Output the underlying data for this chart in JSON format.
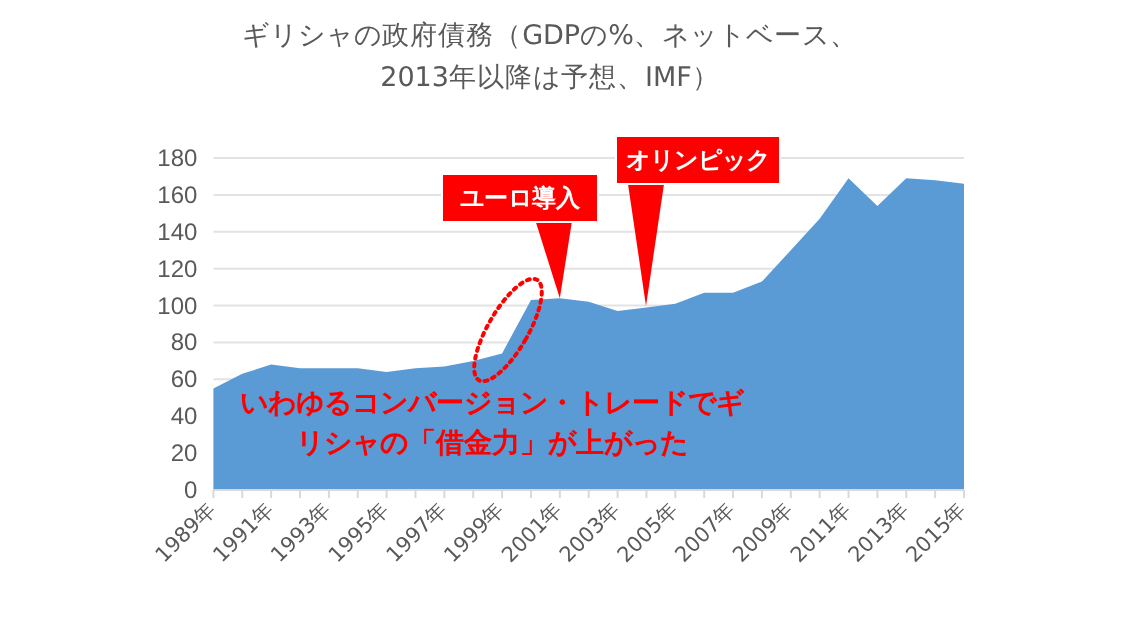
{
  "chart_data": {
    "type": "area",
    "title": "ギリシャの政府債務（GDPの%、ネットベース、2013年以降は予想、IMF）",
    "categories": [
      "1989年",
      null,
      "1991年",
      null,
      "1993年",
      null,
      "1995年",
      null,
      "1997年",
      null,
      "1999年",
      null,
      "2001年",
      null,
      "2003年",
      null,
      "2005年",
      null,
      "2007年",
      null,
      "2009年",
      null,
      "2011年",
      null,
      "2013年",
      null,
      "2015年"
    ],
    "values": [
      55,
      63,
      68,
      66,
      66,
      66,
      64,
      66,
      67,
      70,
      74,
      103,
      104,
      102,
      97,
      99,
      101,
      107,
      107,
      113,
      130,
      147,
      169,
      154,
      169,
      168,
      166
    ],
    "color": "#5b9bd5",
    "ylim": [
      0,
      180
    ],
    "yticks": [
      0,
      20,
      40,
      60,
      80,
      100,
      120,
      140,
      160,
      180
    ],
    "grid": "y",
    "annotations": [
      {
        "text": "ユーロ導入",
        "x": "2001年",
        "y": 104
      },
      "オリンピック",
      "いわゆるコンバージョン・トレードでギリシャの「借金力」が上がった"
    ]
  }
}
